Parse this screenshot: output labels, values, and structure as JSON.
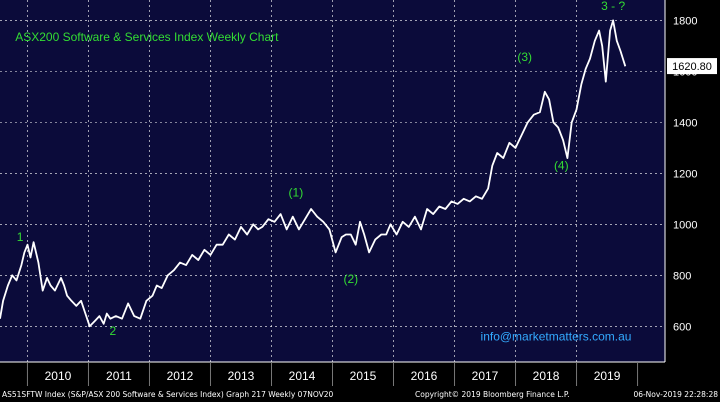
{
  "chart_data": {
    "type": "line",
    "title": "ASX200 Software & Services Index Weekly Chart",
    "watermark": "info@marketmatters.com.au",
    "x_ticks": [
      "2010",
      "2011",
      "2012",
      "2013",
      "2014",
      "2015",
      "2016",
      "2017",
      "2018",
      "2019"
    ],
    "y_ticks": [
      600,
      800,
      1000,
      1200,
      1400,
      1600,
      1800
    ],
    "ylim": [
      460,
      1880
    ],
    "xlim": [
      2009.55,
      2020.45
    ],
    "last_value_label": "1620.80",
    "last_value": 1620.8,
    "grid": true,
    "series": [
      {
        "x": [
          2009.55,
          2009.6,
          2009.68,
          2009.75,
          2009.82,
          2009.9,
          2009.95,
          2010.0,
          2010.05,
          2010.1,
          2010.18,
          2010.25,
          2010.32,
          2010.38,
          2010.45,
          2010.55,
          2010.6,
          2010.65,
          2010.72,
          2010.8,
          2010.88,
          2010.95,
          2011.02,
          2011.1,
          2011.18,
          2011.25,
          2011.3,
          2011.36,
          2011.45,
          2011.55,
          2011.65,
          2011.75,
          2011.85,
          2011.95,
          2012.05,
          2012.12,
          2012.2,
          2012.3,
          2012.4,
          2012.5,
          2012.6,
          2012.7,
          2012.8,
          2012.9,
          2013.0,
          2013.1,
          2013.2,
          2013.3,
          2013.4,
          2013.5,
          2013.6,
          2013.7,
          2013.78,
          2013.85,
          2013.95,
          2014.05,
          2014.15,
          2014.25,
          2014.35,
          2014.45,
          2014.55,
          2014.65,
          2014.75,
          2014.85,
          2014.95,
          2015.05,
          2015.15,
          2015.22,
          2015.3,
          2015.38,
          2015.45,
          2015.52,
          2015.6,
          2015.7,
          2015.8,
          2015.88,
          2015.95,
          2016.05,
          2016.15,
          2016.25,
          2016.35,
          2016.45,
          2016.55,
          2016.65,
          2016.75,
          2016.85,
          2016.95,
          2017.05,
          2017.15,
          2017.25,
          2017.35,
          2017.45,
          2017.55,
          2017.62,
          2017.7,
          2017.8,
          2017.9,
          2018.0,
          2018.1,
          2018.2,
          2018.3,
          2018.4,
          2018.48,
          2018.55,
          2018.62,
          2018.7,
          2018.78,
          2018.85,
          2018.92,
          2019.0,
          2019.08,
          2019.15,
          2019.22,
          2019.3,
          2019.37,
          2019.42,
          2019.48,
          2019.55,
          2019.6,
          2019.66,
          2019.72,
          2019.8
        ],
        "y": [
          630,
          700,
          760,
          800,
          780,
          840,
          890,
          920,
          870,
          930,
          850,
          740,
          790,
          760,
          740,
          790,
          760,
          720,
          700,
          680,
          700,
          650,
          600,
          620,
          640,
          610,
          650,
          630,
          640,
          630,
          690,
          640,
          630,
          700,
          720,
          760,
          750,
          800,
          820,
          850,
          840,
          880,
          860,
          900,
          880,
          920,
          920,
          960,
          940,
          990,
          960,
          1000,
          980,
          990,
          1020,
          1010,
          1040,
          980,
          1030,
          980,
          1020,
          1060,
          1030,
          1010,
          980,
          890,
          950,
          960,
          960,
          920,
          1010,
          960,
          890,
          940,
          960,
          960,
          1000,
          960,
          1010,
          990,
          1030,
          980,
          1060,
          1040,
          1070,
          1060,
          1090,
          1080,
          1100,
          1090,
          1110,
          1100,
          1140,
          1230,
          1280,
          1260,
          1320,
          1300,
          1350,
          1400,
          1430,
          1440,
          1520,
          1490,
          1400,
          1380,
          1330,
          1260,
          1400,
          1450,
          1550,
          1610,
          1650,
          1720,
          1760,
          1700,
          1560,
          1760,
          1800,
          1720,
          1680,
          1620
        ]
      }
    ],
    "annotations": [
      {
        "text": "1",
        "x": 2009.88,
        "y": 935
      },
      {
        "text": "2",
        "x": 2011.4,
        "y": 565
      },
      {
        "text": "(1)",
        "x": 2014.4,
        "y": 1110
      },
      {
        "text": "(2)",
        "x": 2015.3,
        "y": 770
      },
      {
        "text": "(3)",
        "x": 2018.15,
        "y": 1640
      },
      {
        "text": "(4)",
        "x": 2018.75,
        "y": 1215
      },
      {
        "text": "3 - ?",
        "x": 2019.6,
        "y": 1840
      }
    ],
    "colors": {
      "background": "#0b0b3a",
      "line": "#ffffff",
      "grid": "#ffffff",
      "annotation": "#33dd33",
      "watermark": "#33aaff",
      "last_value_bg": "#ffffff"
    }
  },
  "footer": {
    "left": "AS51SFTW Index (S&P/ASX 200 Software & Services Index) Graph 217  Weekly 07NOV20",
    "center": "Copyright© 2019 Bloomberg Finance L.P.",
    "right": "06-Nov-2019 22:28:28"
  }
}
